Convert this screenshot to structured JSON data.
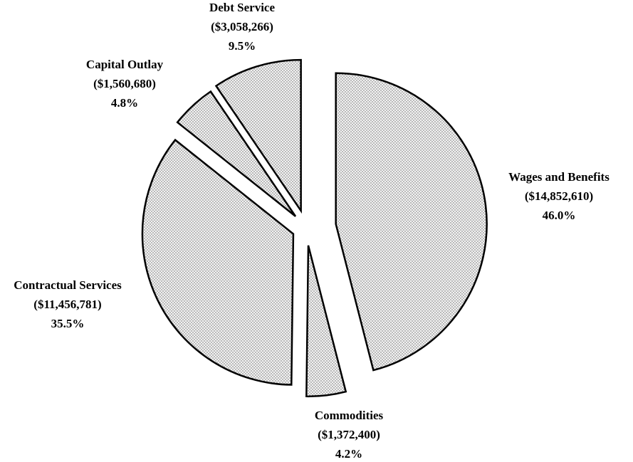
{
  "chart_data": {
    "type": "pie",
    "categories": [
      "Wages and Benefits",
      "Commodities",
      "Contractual Services",
      "Capital Outlay",
      "Debt Service"
    ],
    "values": [
      46.0,
      4.2,
      35.5,
      4.8,
      9.5
    ],
    "value_labels": [
      "46.0%",
      "4.2%",
      "35.5%",
      "4.8%",
      "9.5%"
    ],
    "amounts": [
      14852610,
      1372400,
      11456781,
      1560680,
      3058266
    ],
    "amount_labels": [
      "($14,852,610)",
      "($1,372,400)",
      "($11,456,781)",
      "($1,560,680)",
      "($3,058,266)"
    ]
  }
}
